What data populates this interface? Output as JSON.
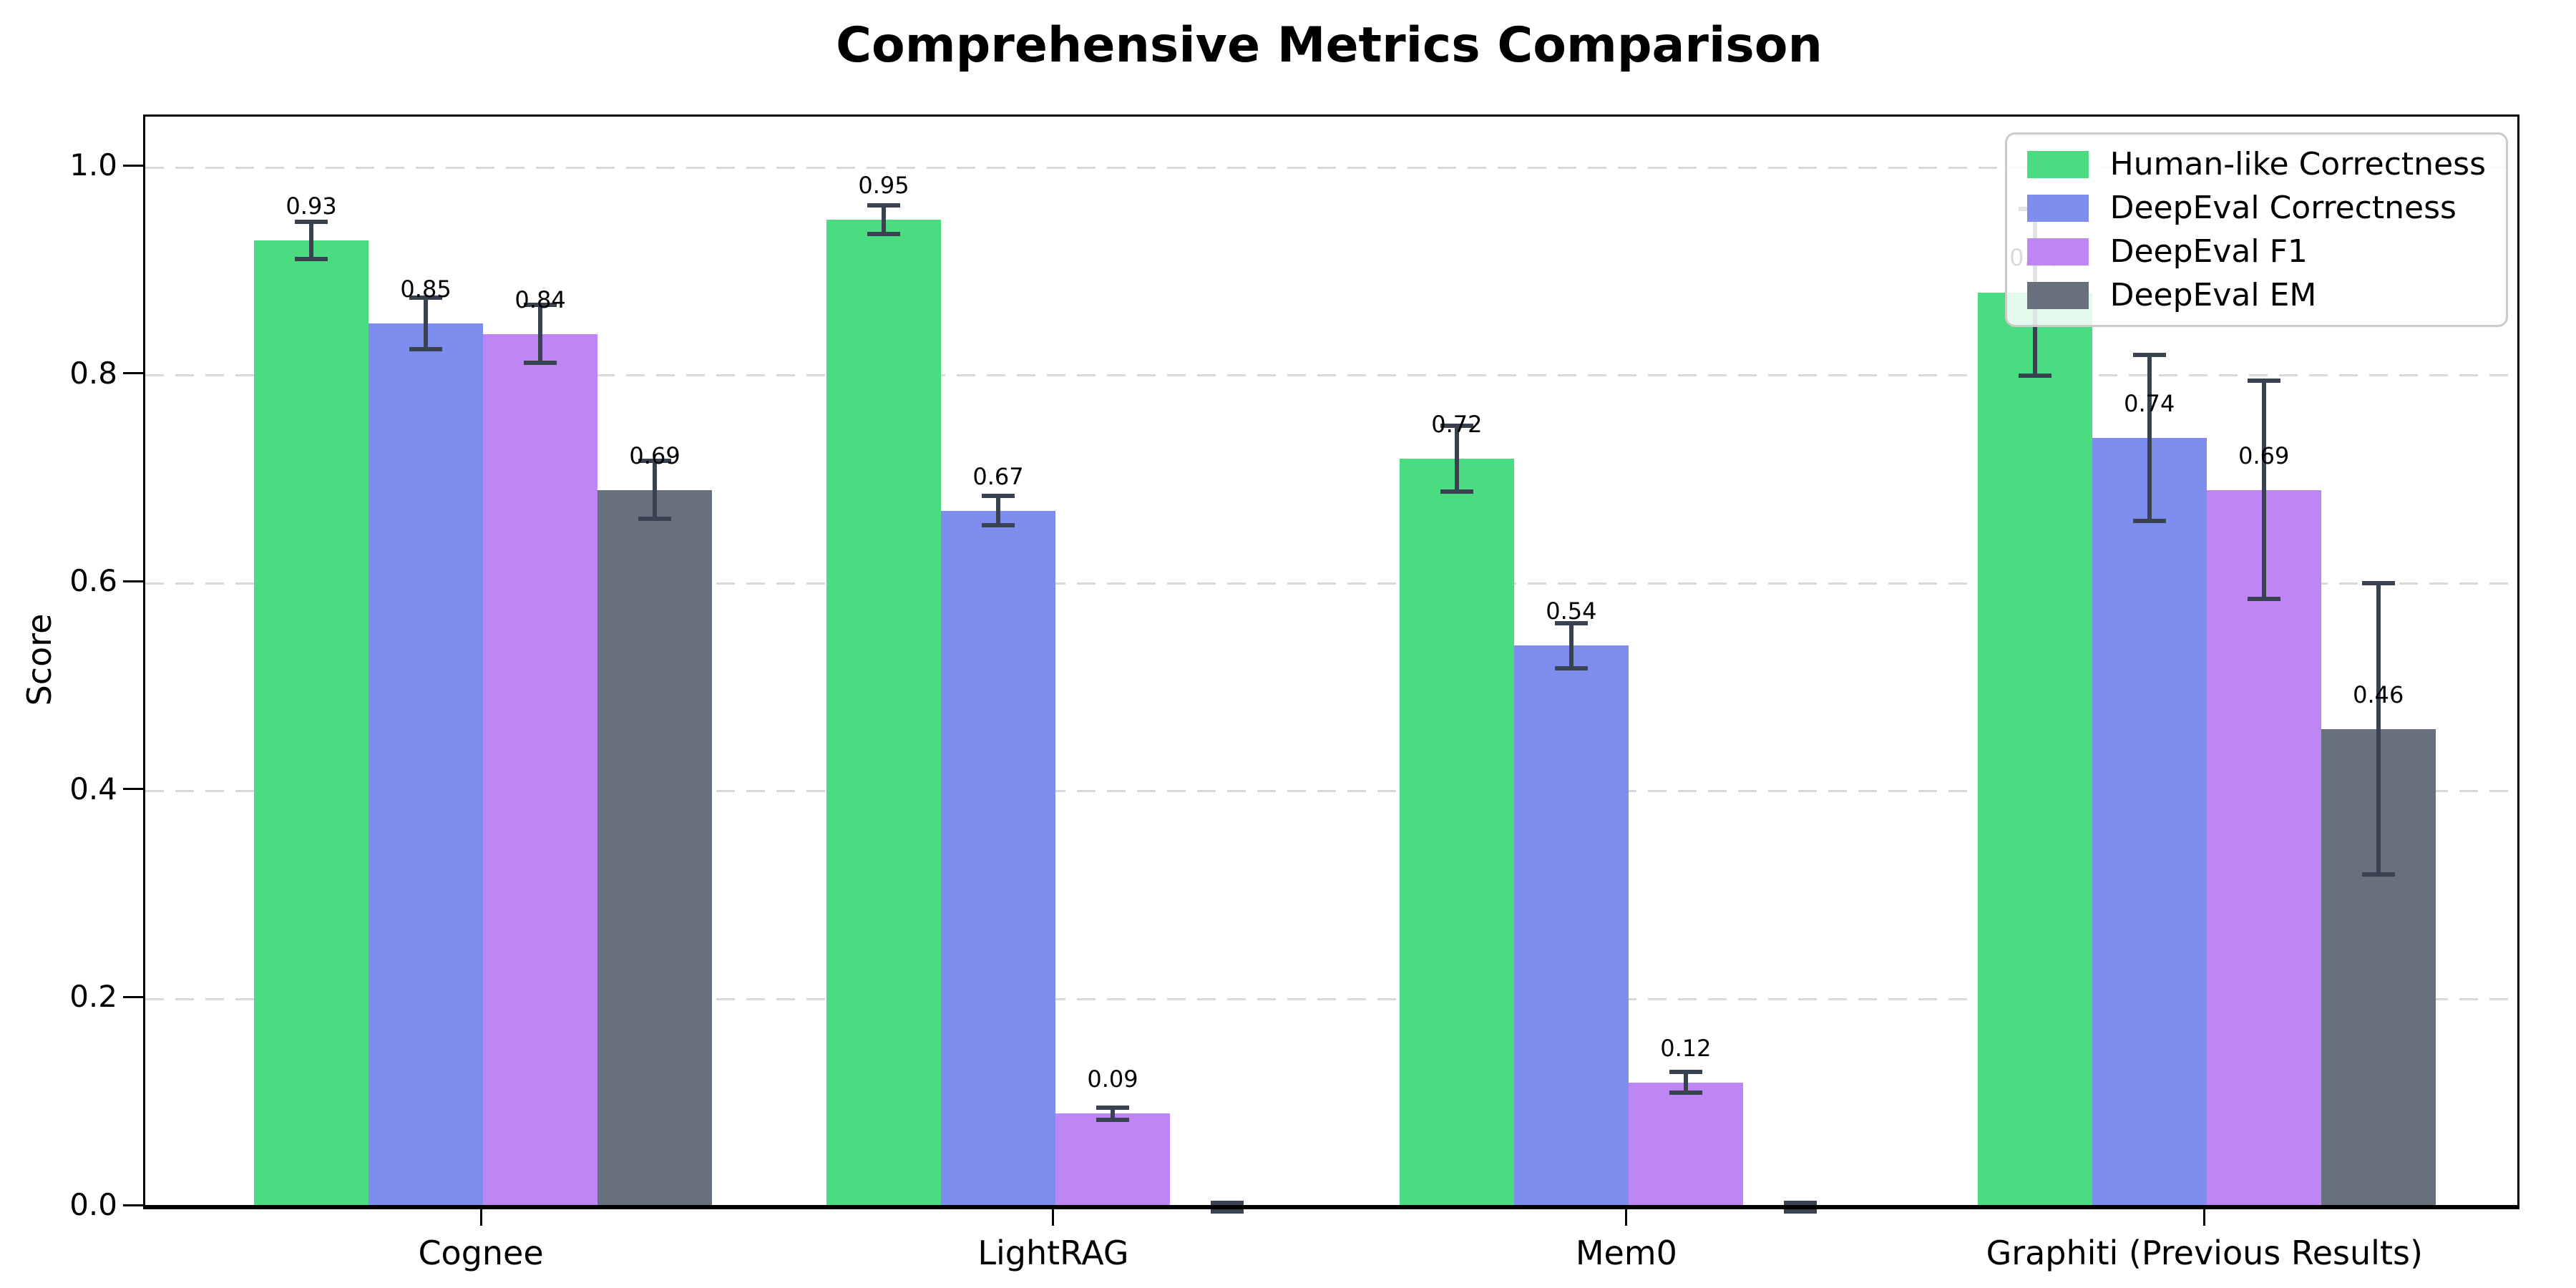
{
  "chart_data": {
    "type": "bar",
    "title": "Comprehensive Metrics Comparison",
    "ylabel": "Score",
    "categories": [
      "Cognee",
      "LightRAG",
      "Mem0",
      "Graphiti (Previous Results)"
    ],
    "series": [
      {
        "name": "Human-like Correctness",
        "color": "#4bdb81",
        "values": [
          0.93,
          0.95,
          0.72,
          0.88
        ],
        "errors": [
          0.018,
          0.014,
          0.032,
          0.08
        ],
        "value_labels": [
          "0.93",
          "0.95",
          "0.72",
          "0.88"
        ]
      },
      {
        "name": "DeepEval Correctness",
        "color": "#7f8def",
        "values": [
          0.85,
          0.67,
          0.54,
          0.74
        ],
        "errors": [
          0.025,
          0.014,
          0.022,
          0.08
        ],
        "value_labels": [
          "0.85",
          "0.67",
          "0.54",
          "0.74"
        ]
      },
      {
        "name": "DeepEval F1",
        "color": "#bd86f4",
        "values": [
          0.84,
          0.09,
          0.12,
          0.69
        ],
        "errors": [
          0.028,
          0.006,
          0.01,
          0.105
        ],
        "value_labels": [
          "0.84",
          "0.09",
          "0.12",
          "0.69"
        ]
      },
      {
        "name": "DeepEval EM",
        "color": "#68707e",
        "values": [
          0.69,
          0.0,
          0.0,
          0.46
        ],
        "errors": [
          0.028,
          0.004,
          0.004,
          0.14
        ],
        "value_labels": [
          "0.69",
          "",
          "",
          "0.46"
        ]
      }
    ],
    "yticks": [
      0.0,
      0.2,
      0.4,
      0.6,
      0.8,
      1.0
    ],
    "ytick_labels": [
      "0.0",
      "0.2",
      "0.4",
      "0.6",
      "0.8",
      "1.0"
    ],
    "ylim": [
      0,
      1.049
    ],
    "legend": {
      "position": "upper right"
    },
    "grid": {
      "axis": "y",
      "style": "dashed",
      "color": "#d9d9d9"
    },
    "colors": {
      "error_bar": "#3a4252",
      "axis": "#000000",
      "background": "#ffffff",
      "text": "#000000"
    }
  }
}
